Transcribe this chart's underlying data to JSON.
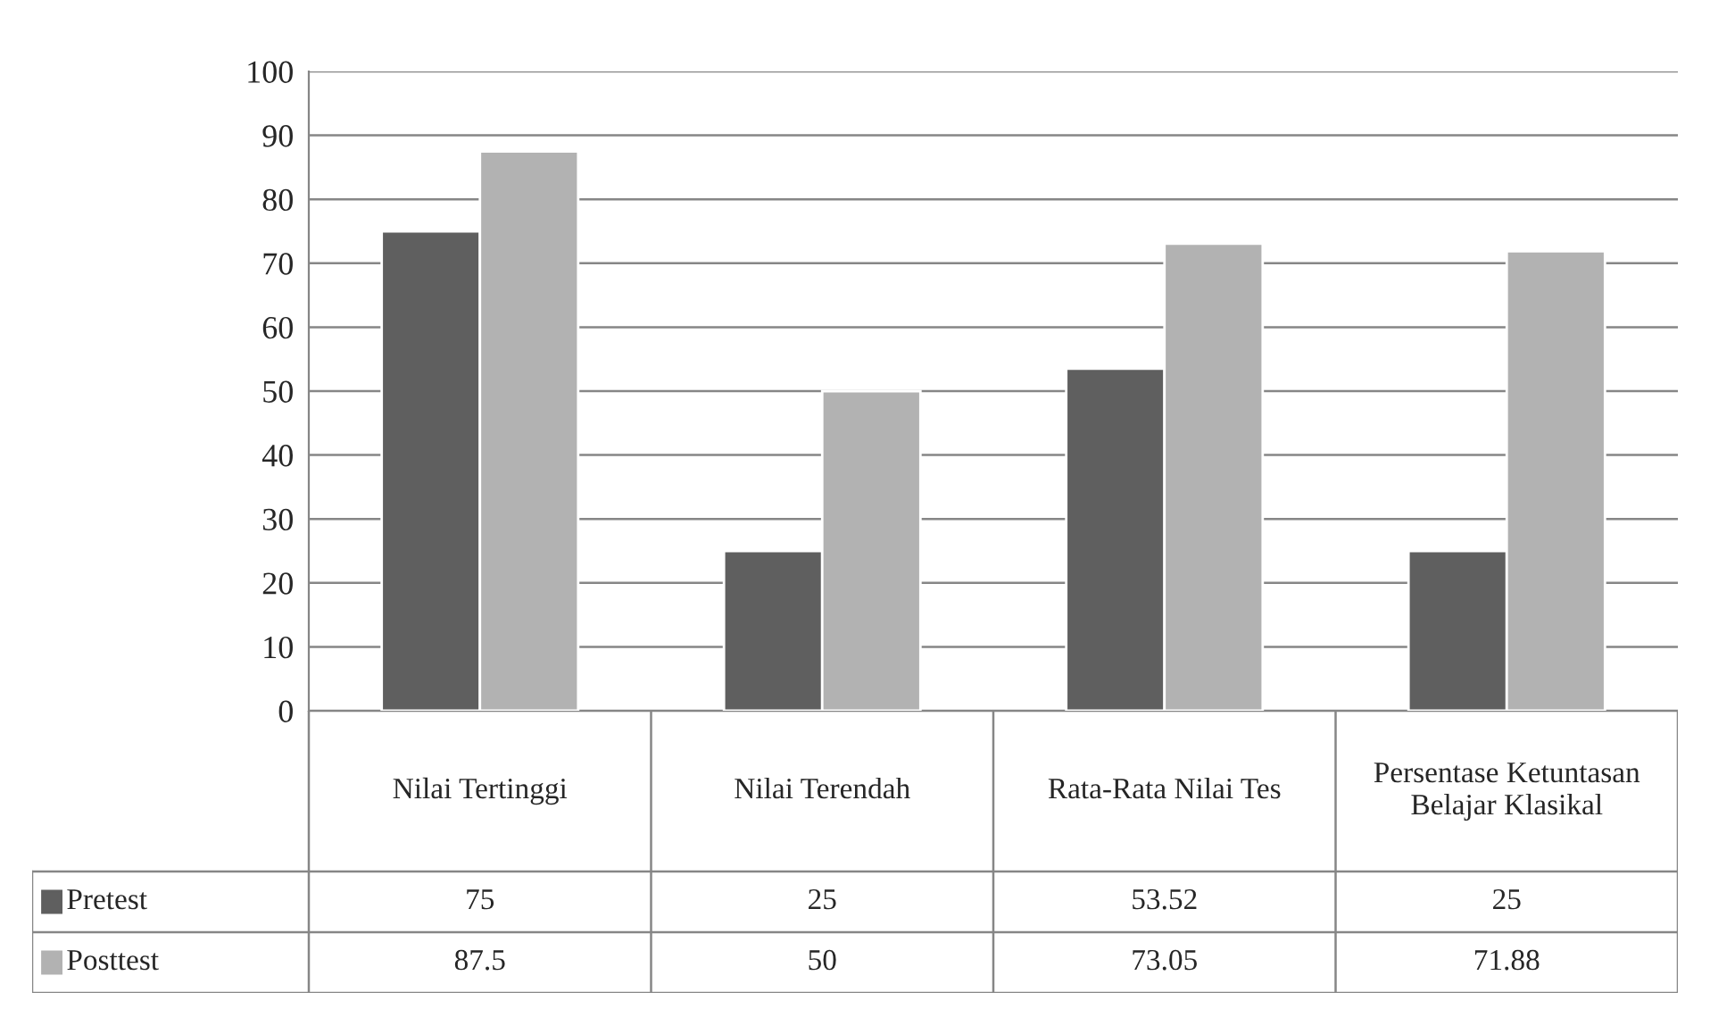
{
  "chart_data": {
    "type": "bar",
    "categories": [
      "Nilai Tertinggi",
      "Nilai Terendah",
      "Rata-Rata Nilai Tes",
      "Persentase Ketuntasan Belajar Klasikal"
    ],
    "series": [
      {
        "name": "Pretest",
        "color": "#5f5f5f",
        "values": [
          75,
          25,
          53.52,
          25
        ]
      },
      {
        "name": "Posttest",
        "color": "#b2b2b2",
        "values": [
          87.5,
          50,
          73.05,
          71.88
        ]
      }
    ],
    "ylim": [
      0,
      100
    ],
    "yticks": [
      0,
      10,
      20,
      30,
      40,
      50,
      60,
      70,
      80,
      90,
      100
    ],
    "grid": "y",
    "legend": "bottom",
    "data_labels": true
  }
}
